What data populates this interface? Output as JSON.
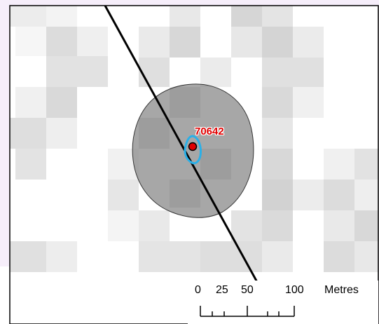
{
  "map": {
    "feature": {
      "id_label": "70642",
      "label_color": "#e00000",
      "point_color": "#e00000",
      "outline_color": "#2ab0e8",
      "buffer_color": "#888888"
    },
    "scale_bar": {
      "ticks": [
        "0",
        "25",
        "50",
        "100"
      ],
      "unit": "Metres"
    }
  }
}
